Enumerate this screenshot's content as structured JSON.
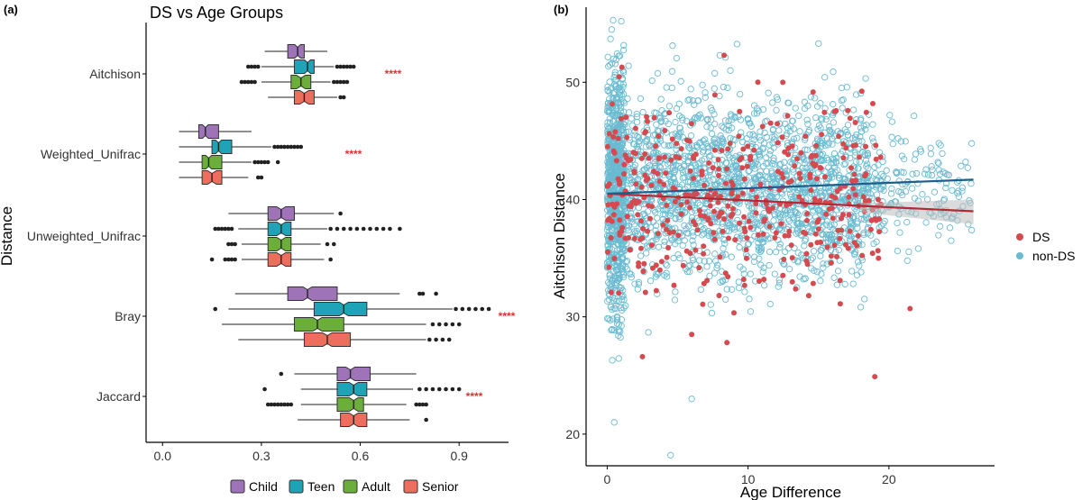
{
  "panel_labels": {
    "a": "(a)",
    "b": "(b)"
  },
  "colors": {
    "Child": "#9E73B8",
    "Teen": "#1FA3B6",
    "Adult": "#6CAE3A",
    "Senior": "#EE6E5E",
    "DS": "#D44A4F",
    "non-DS": "#6ABBD1",
    "DS_line": "#B22A35",
    "nonDS_line": "#1F5E8C",
    "signif": "#E03030",
    "outlier": "#222222"
  },
  "chart_data": [
    {
      "type": "boxplot",
      "title": "DS vs Age Groups",
      "xlabel": "",
      "ylabel": "Distance",
      "xlim": [
        -0.05,
        1.05
      ],
      "xticks": [
        0.0,
        0.3,
        0.6,
        0.9
      ],
      "xtick_labels": [
        "0.0",
        "0.3",
        "0.6",
        "0.9"
      ],
      "categories": [
        "Aitchison",
        "Weighted_Unifrac",
        "Unweighted_Unifrac",
        "Bray",
        "Jaccard"
      ],
      "significance": [
        "****",
        "****",
        "",
        "****",
        "****"
      ],
      "legend": {
        "position": "bottom",
        "entries": [
          "Child",
          "Teen",
          "Adult",
          "Senior"
        ]
      },
      "series": [
        {
          "name": "Child",
          "boxes": [
            {
              "q1": 0.38,
              "med": 0.41,
              "q3": 0.43,
              "lo": 0.31,
              "hi": 0.5,
              "out": []
            },
            {
              "q1": 0.11,
              "med": 0.13,
              "q3": 0.17,
              "lo": 0.05,
              "hi": 0.27,
              "out": []
            },
            {
              "q1": 0.32,
              "med": 0.36,
              "q3": 0.4,
              "lo": 0.2,
              "hi": 0.52,
              "out": [
                0.54
              ]
            },
            {
              "q1": 0.38,
              "med": 0.44,
              "q3": 0.53,
              "lo": 0.22,
              "hi": 0.72,
              "out": [
                0.78,
                0.79,
                0.83
              ]
            },
            {
              "q1": 0.53,
              "med": 0.57,
              "q3": 0.63,
              "lo": 0.4,
              "hi": 0.77,
              "out": [
                0.36
              ]
            }
          ]
        },
        {
          "name": "Teen",
          "boxes": [
            {
              "q1": 0.4,
              "med": 0.44,
              "q3": 0.46,
              "lo": 0.3,
              "hi": 0.52,
              "out": [
                0.26,
                0.27,
                0.28,
                0.29,
                0.53,
                0.54,
                0.55,
                0.56,
                0.57,
                0.58
              ]
            },
            {
              "q1": 0.15,
              "med": 0.17,
              "q3": 0.21,
              "lo": 0.05,
              "hi": 0.33,
              "out": [
                0.34,
                0.35,
                0.36,
                0.37,
                0.38,
                0.39,
                0.4,
                0.41,
                0.42
              ]
            },
            {
              "q1": 0.32,
              "med": 0.36,
              "q3": 0.39,
              "lo": 0.23,
              "hi": 0.5,
              "out": [
                0.16,
                0.17,
                0.18,
                0.19,
                0.2,
                0.21,
                0.51,
                0.53,
                0.55,
                0.57,
                0.59,
                0.61,
                0.63,
                0.65,
                0.67,
                0.69,
                0.72
              ]
            },
            {
              "q1": 0.46,
              "med": 0.55,
              "q3": 0.62,
              "lo": 0.2,
              "hi": 0.88,
              "out": [
                0.16,
                0.89,
                0.91,
                0.93,
                0.95,
                0.97,
                0.99
              ]
            },
            {
              "q1": 0.53,
              "med": 0.58,
              "q3": 0.62,
              "lo": 0.42,
              "hi": 0.76,
              "out": [
                0.31,
                0.78,
                0.8,
                0.82,
                0.84,
                0.86,
                0.88,
                0.9
              ]
            }
          ]
        },
        {
          "name": "Adult",
          "boxes": [
            {
              "q1": 0.39,
              "med": 0.42,
              "q3": 0.45,
              "lo": 0.3,
              "hi": 0.51,
              "out": [
                0.24,
                0.25,
                0.26,
                0.27,
                0.28,
                0.52,
                0.53,
                0.54,
                0.55,
                0.56
              ]
            },
            {
              "q1": 0.12,
              "med": 0.14,
              "q3": 0.18,
              "lo": 0.05,
              "hi": 0.27,
              "out": [
                0.28,
                0.29,
                0.3,
                0.31,
                0.32,
                0.35
              ]
            },
            {
              "q1": 0.32,
              "med": 0.36,
              "q3": 0.39,
              "lo": 0.24,
              "hi": 0.48,
              "out": [
                0.2,
                0.21,
                0.22,
                0.5,
                0.52
              ]
            },
            {
              "q1": 0.4,
              "med": 0.47,
              "q3": 0.55,
              "lo": 0.18,
              "hi": 0.8,
              "out": [
                0.82,
                0.84,
                0.86,
                0.88,
                0.9
              ]
            },
            {
              "q1": 0.53,
              "med": 0.58,
              "q3": 0.61,
              "lo": 0.42,
              "hi": 0.74,
              "out": [
                0.32,
                0.33,
                0.34,
                0.35,
                0.36,
                0.37,
                0.38,
                0.39,
                0.77,
                0.78,
                0.79,
                0.8
              ]
            }
          ]
        },
        {
          "name": "Senior",
          "boxes": [
            {
              "q1": 0.4,
              "med": 0.43,
              "q3": 0.46,
              "lo": 0.32,
              "hi": 0.53,
              "out": [
                0.54,
                0.55
              ]
            },
            {
              "q1": 0.12,
              "med": 0.15,
              "q3": 0.18,
              "lo": 0.05,
              "hi": 0.26,
              "out": [
                0.29,
                0.3
              ]
            },
            {
              "q1": 0.32,
              "med": 0.36,
              "q3": 0.39,
              "lo": 0.24,
              "hi": 0.49,
              "out": [
                0.15,
                0.19,
                0.2,
                0.21,
                0.22,
                0.51
              ]
            },
            {
              "q1": 0.43,
              "med": 0.5,
              "q3": 0.57,
              "lo": 0.23,
              "hi": 0.8,
              "out": [
                0.81,
                0.83,
                0.85,
                0.87
              ]
            },
            {
              "q1": 0.54,
              "med": 0.58,
              "q3": 0.62,
              "lo": 0.41,
              "hi": 0.75,
              "out": [
                0.8
              ]
            }
          ]
        }
      ]
    },
    {
      "type": "scatter",
      "title": "",
      "xlabel": "Age Difference",
      "ylabel": "Aitchison Distance",
      "xlim": [
        -1.5,
        27.5
      ],
      "ylim": [
        17.3,
        56.4
      ],
      "xticks": [
        0,
        10,
        20
      ],
      "yticks": [
        20,
        30,
        40,
        50
      ],
      "legend": {
        "position": "right",
        "entries": [
          "DS",
          "non-DS"
        ]
      },
      "series": [
        {
          "name": "non-DS",
          "marker": "hollow-circle",
          "fit": {
            "x0": 0,
            "y0": 40.5,
            "x1": 26,
            "y1": 41.7
          },
          "notable_points": [
            [
              0.5,
              21
            ],
            [
              4.5,
              18.2
            ],
            [
              6,
              23
            ],
            [
              1,
              55.2
            ],
            [
              8,
              52.3
            ],
            [
              15,
              53.3
            ]
          ]
        },
        {
          "name": "DS",
          "marker": "filled-circle",
          "fit": {
            "x0": 0,
            "y0": 40.5,
            "x1": 26,
            "y1": 39.0
          },
          "notable_points": [
            [
              2.5,
              26.6
            ],
            [
              8.3,
              52.3
            ],
            [
              19,
              24.9
            ],
            [
              21.5,
              30.7
            ],
            [
              8.5,
              27.8
            ],
            [
              6,
              28.5
            ]
          ]
        }
      ]
    }
  ]
}
